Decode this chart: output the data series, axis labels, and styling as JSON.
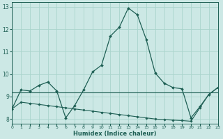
{
  "xlabel": "Humidex (Indice chaleur)",
  "xlim": [
    0,
    23
  ],
  "ylim": [
    7.8,
    13.2
  ],
  "yticks": [
    8,
    9,
    10,
    11,
    12,
    13
  ],
  "xtick_labels": [
    "0",
    "1",
    "2",
    "3",
    "4",
    "5",
    "6",
    "7",
    "8",
    "9",
    "10",
    "11",
    "12",
    "13",
    "14",
    "15",
    "16",
    "17",
    "18",
    "19",
    "20",
    "21",
    "22",
    "23"
  ],
  "bg_color": "#cce8e5",
  "line_color": "#1e5f54",
  "grid_color": "#aad4cc",
  "series_main": [
    8.45,
    9.3,
    9.25,
    9.5,
    9.65,
    9.25,
    8.05,
    8.6,
    9.3,
    10.1,
    10.4,
    11.7,
    12.1,
    12.95,
    12.65,
    11.55,
    10.05,
    9.6,
    9.4,
    9.35,
    8.05,
    8.55,
    9.1,
    9.4
  ],
  "series_flat": [
    9.2,
    9.2,
    9.2,
    9.2,
    9.2,
    9.2,
    9.2,
    9.2,
    9.2,
    9.2,
    9.2,
    9.2,
    9.2,
    9.2,
    9.2,
    9.2,
    9.2,
    9.2,
    9.2,
    9.2,
    9.2,
    9.2,
    9.2,
    9.2
  ],
  "series_lower": [
    8.45,
    8.75,
    8.7,
    8.65,
    8.6,
    8.55,
    8.5,
    8.45,
    8.4,
    8.35,
    8.3,
    8.25,
    8.2,
    8.15,
    8.1,
    8.05,
    8.0,
    7.97,
    7.95,
    7.93,
    7.9,
    8.5,
    9.1,
    9.4
  ]
}
